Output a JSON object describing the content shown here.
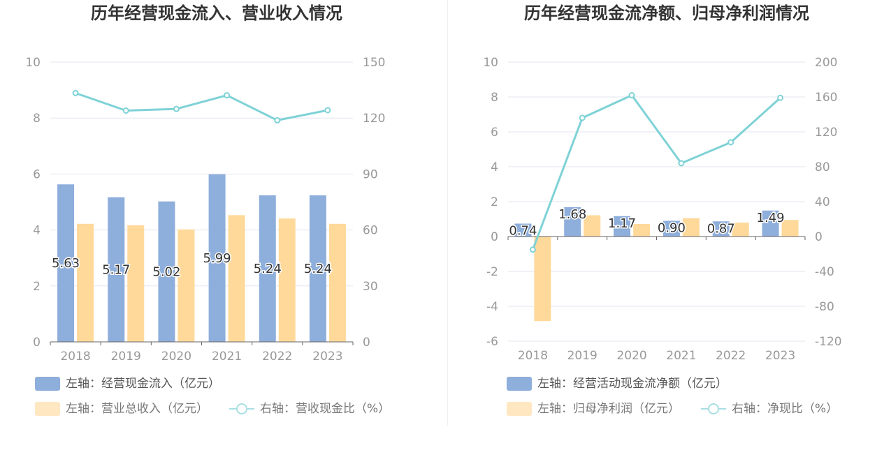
{
  "chart_data": [
    {
      "type": "bar",
      "title": "历年经营现金流入、营业收入情况",
      "categories": [
        "2018",
        "2019",
        "2020",
        "2021",
        "2022",
        "2023"
      ],
      "y_left_ticks": [
        "10",
        "8",
        "6",
        "4",
        "2",
        "0"
      ],
      "y_right_ticks": [
        "150",
        "120",
        "90",
        "60",
        "30",
        "0"
      ],
      "ylim_left": [
        0,
        10
      ],
      "ylim_right": [
        0,
        150
      ],
      "series": [
        {
          "name": "左轴：经营现金流入（亿元）",
          "type": "bar",
          "axis": "left",
          "values": [
            5.63,
            5.17,
            5.02,
            5.99,
            5.24,
            5.24
          ],
          "labels": [
            "5.63",
            "5.17",
            "5.02",
            "5.99",
            "5.24",
            "5.24"
          ]
        },
        {
          "name": "左轴：营业总收入（亿元）",
          "type": "bar",
          "axis": "left",
          "values": [
            4.22,
            4.17,
            4.02,
            4.53,
            4.41,
            4.22
          ]
        },
        {
          "name": "右轴：营收现金比（%）",
          "type": "line",
          "axis": "right",
          "values": [
            133.4,
            124.0,
            124.9,
            132.2,
            118.8,
            124.2
          ]
        }
      ],
      "colors": {
        "bar1": "#8eaedb",
        "bar2": "#ffd99a",
        "line": "#7fd2d6",
        "grid": "#e3e6ef",
        "tick": "#999999"
      },
      "grid": true,
      "legend_position": "bottom-left"
    },
    {
      "type": "bar",
      "title": "历年经营现金流净额、归母净利润情况",
      "categories": [
        "2018",
        "2019",
        "2020",
        "2021",
        "2022",
        "2023"
      ],
      "y_left_ticks": [
        "10",
        "8",
        "6",
        "4",
        "2",
        "0",
        "-2",
        "-4",
        "-6"
      ],
      "y_right_ticks": [
        "200",
        "160",
        "120",
        "80",
        "40",
        "0",
        "-40",
        "-80",
        "-120"
      ],
      "ylim_left": [
        -6,
        10
      ],
      "ylim_right": [
        -120,
        200
      ],
      "series": [
        {
          "name": "左轴：经营活动现金流净额（亿元）",
          "type": "bar",
          "axis": "left",
          "values": [
            0.74,
            1.68,
            1.17,
            0.9,
            0.87,
            1.49
          ],
          "labels": [
            "0.74",
            "1.68",
            "1.17",
            "0.90",
            "0.87",
            "1.49"
          ]
        },
        {
          "name": "左轴：归母净利润（亿元）",
          "type": "bar",
          "axis": "left",
          "values": [
            -4.85,
            1.22,
            0.72,
            1.05,
            0.8,
            0.95
          ]
        },
        {
          "name": "右轴：净现比（%）",
          "type": "line",
          "axis": "right",
          "values": [
            -15,
            136,
            162,
            84,
            108,
            159
          ]
        }
      ],
      "colors": {
        "bar1": "#8eaedb",
        "bar2": "#ffd99a",
        "line": "#7fd2d6",
        "grid": "#e3e6ef",
        "tick": "#999999"
      },
      "grid": true,
      "legend_position": "bottom-left"
    }
  ]
}
